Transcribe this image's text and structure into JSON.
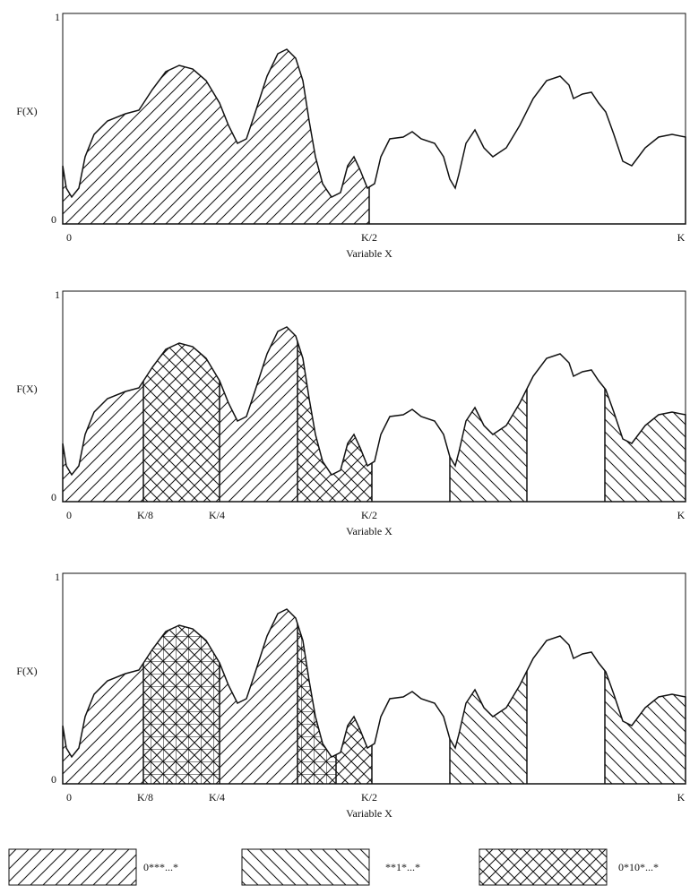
{
  "panels": [
    {
      "y_top": "1",
      "y_label": "F(X)",
      "y_bottom": "0",
      "x_ticks": [
        "0",
        "K/2",
        "K"
      ],
      "x_label": "Variable X"
    },
    {
      "y_top": "1",
      "y_label": "F(X)",
      "y_bottom": "0",
      "x_ticks": [
        "0",
        "K/8",
        "K/4",
        "K/2",
        "K"
      ],
      "x_label": "Variable X"
    },
    {
      "y_top": "1",
      "y_label": "F(X)",
      "y_bottom": "0",
      "x_ticks": [
        "0",
        "K/8",
        "K/4",
        "K/2",
        "K"
      ],
      "x_label": "Variable X"
    }
  ],
  "legend": [
    "0***...*",
    "**1*...*",
    "0*10*...*"
  ]
}
